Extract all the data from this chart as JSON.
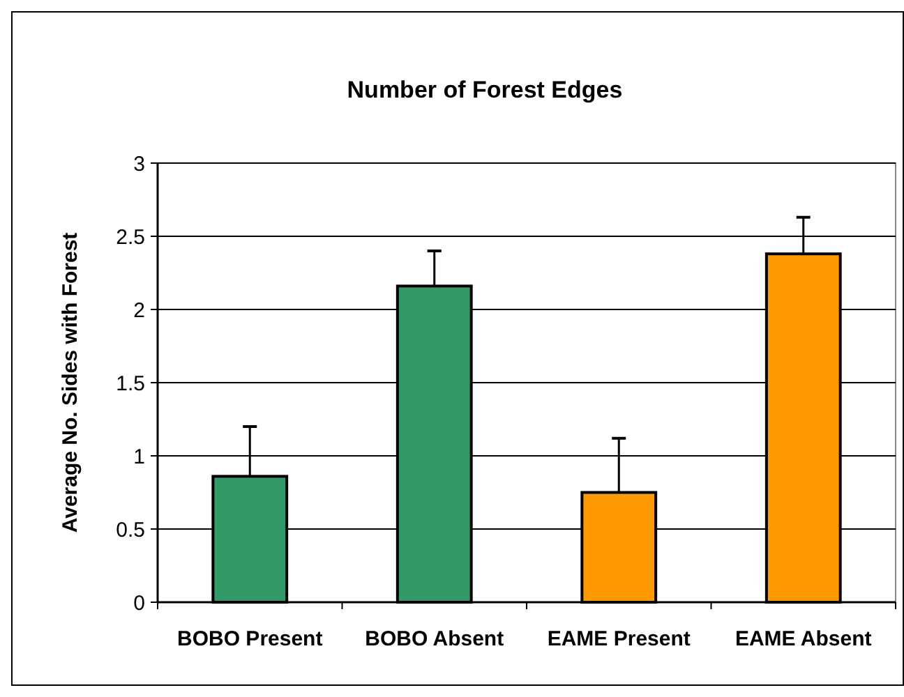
{
  "chart_data": {
    "type": "bar",
    "title": "Number of Forest Edges",
    "ylabel": "Average No. Sides with Forest",
    "categories": [
      "BOBO Present",
      "BOBO Absent",
      "EAME Present",
      "EAME Absent"
    ],
    "values": [
      0.86,
      2.16,
      0.75,
      2.38
    ],
    "colors": [
      "#339966",
      "#339966",
      "#ff9900",
      "#ff9900"
    ],
    "errors": [
      [
        0.86,
        1.2
      ],
      [
        2.16,
        2.4
      ],
      [
        0.75,
        1.12
      ],
      [
        2.38,
        2.63
      ]
    ],
    "ylim": [
      0,
      3
    ],
    "yticks": [
      0,
      0.5,
      1,
      1.5,
      2,
      2.5,
      3
    ],
    "grid": "y"
  }
}
